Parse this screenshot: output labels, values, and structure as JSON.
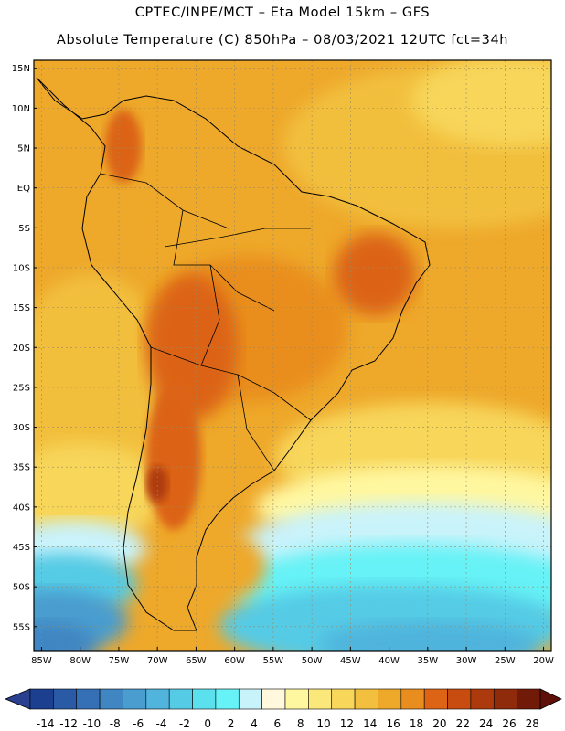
{
  "title": {
    "line1": "CPTEC/INPE/MCT –   Eta Model 15km – GFS",
    "line2": "Absolute Temperature (C) 850hPa – 08/03/2021 12UTC fct=34h"
  },
  "map": {
    "lat_labels": [
      "15N",
      "10N",
      "5N",
      "EQ",
      "5S",
      "10S",
      "15S",
      "20S",
      "25S",
      "30S",
      "35S",
      "40S",
      "45S",
      "50S",
      "55S"
    ],
    "lat_values": [
      15,
      10,
      5,
      0,
      -5,
      -10,
      -15,
      -20,
      -25,
      -30,
      -35,
      -40,
      -45,
      -50,
      -55
    ],
    "lon_labels": [
      "85W",
      "80W",
      "75W",
      "70W",
      "65W",
      "60W",
      "55W",
      "50W",
      "45W",
      "40W",
      "35W",
      "30W",
      "25W",
      "20W"
    ],
    "lon_values": [
      -85,
      -80,
      -75,
      -70,
      -65,
      -60,
      -55,
      -50,
      -45,
      -40,
      -35,
      -30,
      -25,
      -20
    ],
    "lat_range": [
      -58,
      16
    ],
    "lon_range": [
      -86,
      -19
    ]
  },
  "colorbar": {
    "values": [
      "-14",
      "-12",
      "-10",
      "-8",
      "-6",
      "-4",
      "-2",
      "0",
      "2",
      "4",
      "6",
      "8",
      "10",
      "12",
      "14",
      "16",
      "18",
      "20",
      "22",
      "24",
      "26",
      "28"
    ],
    "colors": [
      "#1c3f8f",
      "#2a5aa6",
      "#356fb5",
      "#3f86c2",
      "#4a9dcf",
      "#50b4dc",
      "#55cbe6",
      "#5be0ee",
      "#66f2f6",
      "#c9f3fb",
      "#fff8dc",
      "#fff7a0",
      "#fbe87a",
      "#f7d65a",
      "#f2bf3e",
      "#eea82a",
      "#e98e1e",
      "#dc6414",
      "#c84c10",
      "#ad3a0c",
      "#8f2a0a",
      "#721a08"
    ]
  }
}
